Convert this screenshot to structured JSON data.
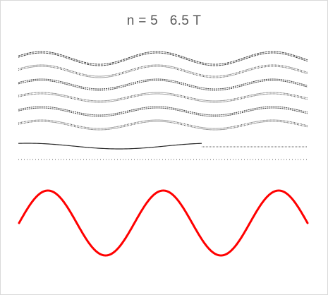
{
  "title": "n = 5   6.5 T",
  "wave": {
    "color": "#ff0000",
    "cycles": 2.5,
    "start_phase": "sine"
  },
  "stack": {
    "layer_count": 6,
    "line_color": "#404040"
  }
}
